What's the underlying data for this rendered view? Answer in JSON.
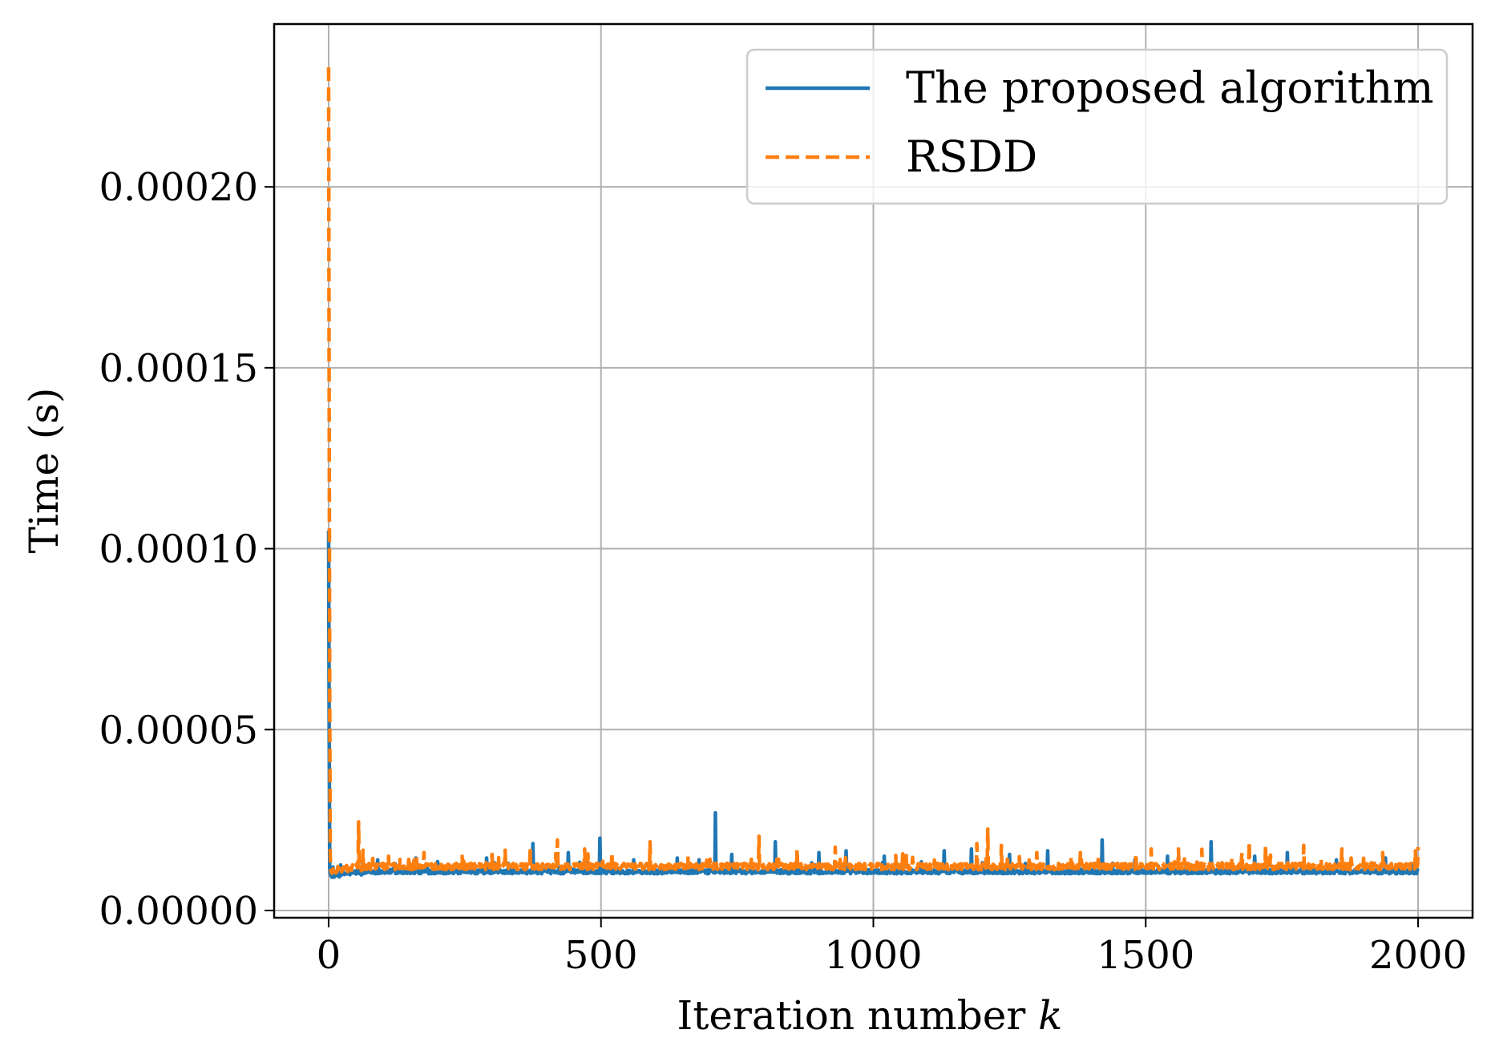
{
  "chart_data": {
    "type": "line",
    "xlabel": "Iteration number",
    "xlabel_var": "k",
    "ylabel": "Time (s)",
    "xlim": [
      -100,
      2100
    ],
    "ylim": [
      -2e-06,
      0.000245
    ],
    "x_ticks": [
      0,
      500,
      1000,
      1500,
      2000
    ],
    "x_tick_labels": [
      "0",
      "500",
      "1000",
      "1500",
      "2000"
    ],
    "y_ticks": [
      0,
      5e-05,
      0.0001,
      0.00015,
      0.0002
    ],
    "y_tick_labels": [
      "0.00000",
      "0.00005",
      "0.00010",
      "0.00015",
      "0.00020"
    ],
    "grid": true,
    "legend_position": "top-right",
    "series": [
      {
        "name": "The proposed algorithm",
        "color": "#1f77b4",
        "style": "solid",
        "baseline": 1.05e-05,
        "noise": 1.2e-06,
        "spikes": [
          [
            0,
            0.000105
          ],
          [
            1,
            5e-05
          ],
          [
            2,
            1.2e-05
          ],
          [
            5,
            9.5e-06
          ],
          [
            10,
            9.2e-06
          ],
          [
            20,
            9.3e-06
          ],
          [
            60,
            9.8e-06
          ],
          [
            90,
            1.4e-05
          ],
          [
            120,
            1.3e-05
          ],
          [
            160,
            1.45e-05
          ],
          [
            200,
            1.35e-05
          ],
          [
            290,
            1.45e-05
          ],
          [
            330,
            1.3e-05
          ],
          [
            375,
            1.85e-05
          ],
          [
            440,
            1.6e-05
          ],
          [
            498,
            2e-05
          ],
          [
            560,
            1.4e-05
          ],
          [
            640,
            1.45e-05
          ],
          [
            680,
            1.4e-05
          ],
          [
            710,
            2.7e-05
          ],
          [
            740,
            1.55e-05
          ],
          [
            820,
            1.9e-05
          ],
          [
            900,
            1.6e-05
          ],
          [
            950,
            1.65e-05
          ],
          [
            1020,
            1.5e-05
          ],
          [
            1130,
            1.65e-05
          ],
          [
            1180,
            1.7e-05
          ],
          [
            1250,
            1.55e-05
          ],
          [
            1320,
            1.65e-05
          ],
          [
            1420,
            1.95e-05
          ],
          [
            1480,
            1.4e-05
          ],
          [
            1540,
            1.5e-05
          ],
          [
            1620,
            1.9e-05
          ],
          [
            1700,
            1.5e-05
          ],
          [
            1760,
            1.6e-05
          ],
          [
            1850,
            1.4e-05
          ],
          [
            1940,
            1.45e-05
          ],
          [
            2000,
            1.1e-05
          ]
        ]
      },
      {
        "name": "RSDD",
        "color": "#ff7f0e",
        "style": "dashed",
        "baseline": 1.18e-05,
        "noise": 1.8e-06,
        "spikes": [
          [
            0,
            0.000233
          ],
          [
            1,
            0.00014
          ],
          [
            2,
            6e-05
          ],
          [
            3,
            1.5e-05
          ],
          [
            8,
            1.15e-05
          ],
          [
            30,
            1.05e-05
          ],
          [
            55,
            2.45e-05
          ],
          [
            60,
            1.1e-05
          ],
          [
            110,
            1.5e-05
          ],
          [
            175,
            1.6e-05
          ],
          [
            245,
            1.5e-05
          ],
          [
            300,
            1.55e-05
          ],
          [
            370,
            1.75e-05
          ],
          [
            420,
            1.95e-05
          ],
          [
            470,
            1.7e-05
          ],
          [
            520,
            1.6e-05
          ],
          [
            590,
            1.9e-05
          ],
          [
            660,
            1.5e-05
          ],
          [
            790,
            2.05e-05
          ],
          [
            860,
            1.7e-05
          ],
          [
            930,
            1.75e-05
          ],
          [
            1060,
            1.65e-05
          ],
          [
            1190,
            1.85e-05
          ],
          [
            1210,
            2.25e-05
          ],
          [
            1235,
            1.8e-05
          ],
          [
            1300,
            1.6e-05
          ],
          [
            1380,
            1.6e-05
          ],
          [
            1510,
            1.7e-05
          ],
          [
            1560,
            1.7e-05
          ],
          [
            1690,
            1.9e-05
          ],
          [
            1720,
            1.8e-05
          ],
          [
            1790,
            1.8e-05
          ],
          [
            1860,
            1.7e-05
          ],
          [
            1935,
            1.6e-05
          ],
          [
            1995,
            1.65e-05
          ],
          [
            2000,
            1.75e-05
          ]
        ]
      }
    ]
  }
}
